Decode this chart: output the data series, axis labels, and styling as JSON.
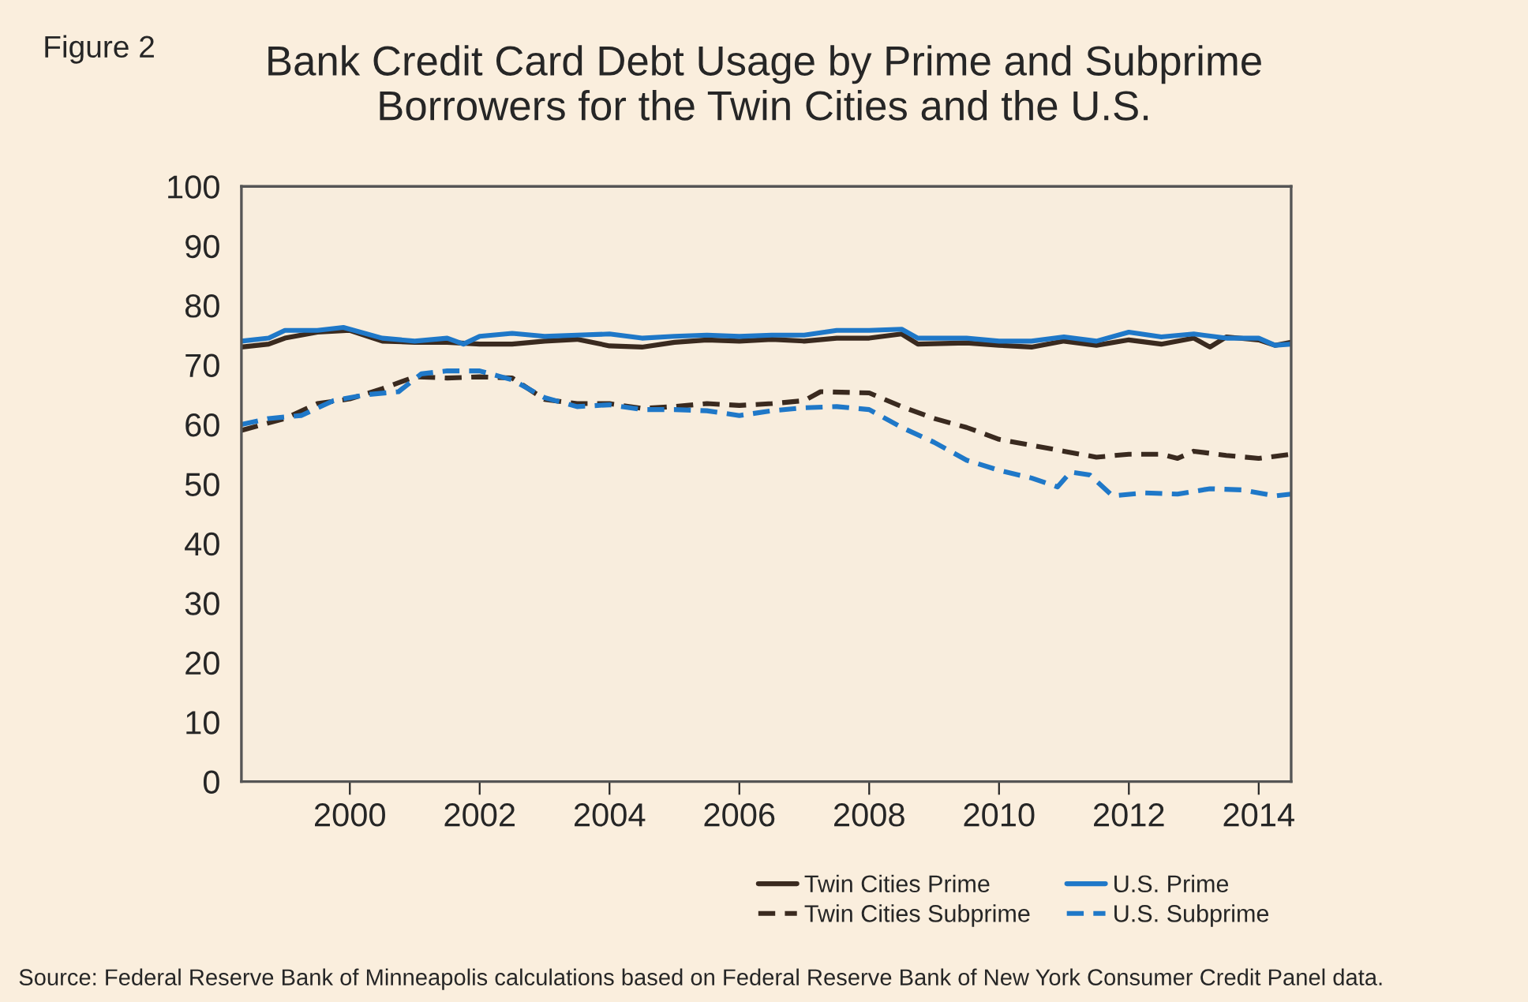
{
  "chart_data": {
    "type": "line",
    "title": "Bank Credit Card Debt Usage by Prime and Subprime\nBorrowers for the Twin Cities and the U.S.",
    "annotations": [
      "Figure 2",
      "Source: Federal Reserve Bank of Minneapolis calculations based on Federal Reserve Bank of New York Consumer Credit Panel data."
    ],
    "xlim": [
      1998.33,
      2014.5
    ],
    "ylim": [
      0,
      100
    ],
    "xticks": [
      2000,
      2002,
      2004,
      2006,
      2008,
      2010,
      2012,
      2014
    ],
    "yticks": [
      0,
      10,
      20,
      30,
      40,
      50,
      60,
      70,
      80,
      90,
      100
    ],
    "grid": false,
    "legend": "bottom right",
    "marker": "none",
    "series": [
      {
        "name": "Twin Cities Prime",
        "color": "#3a2a1f",
        "line_style": "solid",
        "x": [
          1998.33,
          1998.75,
          1999,
          1999.5,
          2000,
          2000.5,
          2001,
          2001.5,
          2002,
          2002.5,
          2003,
          2003.5,
          2004,
          2004.5,
          2005,
          2005.5,
          2006,
          2006.5,
          2007,
          2007.5,
          2008,
          2008.5,
          2008.75,
          2009.5,
          2010,
          2010.5,
          2011,
          2011.5,
          2012,
          2012.5,
          2013,
          2013.25,
          2013.5,
          2014,
          2014.25,
          2014.5
        ],
        "values": [
          73,
          73.5,
          74.5,
          75.5,
          75.8,
          74,
          73.8,
          73.8,
          73.5,
          73.5,
          74,
          74.3,
          73.2,
          73,
          73.8,
          74.2,
          74,
          74.3,
          74,
          74.5,
          74.5,
          75.2,
          73.5,
          73.7,
          73.3,
          73,
          74,
          73.3,
          74.2,
          73.5,
          74.5,
          73,
          74.7,
          74.2,
          73.3,
          73.8
        ]
      },
      {
        "name": "Twin Cities Subprime",
        "color": "#3a2a1f",
        "line_style": "dashed",
        "x": [
          1998.33,
          1999,
          1999.5,
          2000,
          2000.5,
          2001,
          2001.5,
          2002,
          2002.5,
          2003,
          2003.5,
          2004,
          2004.5,
          2005,
          2005.5,
          2006,
          2006.5,
          2007,
          2007.25,
          2008,
          2008.5,
          2009,
          2009.5,
          2010,
          2010.5,
          2011,
          2011.5,
          2012,
          2012.5,
          2012.75,
          2013,
          2013.5,
          2014,
          2014.5
        ],
        "values": [
          59,
          61,
          63.5,
          64.3,
          66,
          68,
          67.8,
          68,
          67.8,
          64.2,
          63.5,
          63.5,
          62.7,
          63,
          63.5,
          63.2,
          63.5,
          64,
          65.5,
          65.3,
          63,
          61,
          59.5,
          57.5,
          56.5,
          55.5,
          54.5,
          55,
          55,
          54.3,
          55.5,
          54.8,
          54.3,
          55
        ]
      },
      {
        "name": "U.S. Prime",
        "color": "#1f78c8",
        "line_style": "solid",
        "x": [
          1998.33,
          1998.75,
          1999,
          1999.5,
          1999.9,
          2000.5,
          2001,
          2001.5,
          2001.75,
          2002,
          2002.5,
          2003,
          2003.5,
          2004,
          2004.5,
          2005,
          2005.5,
          2006,
          2006.5,
          2007,
          2007.5,
          2008,
          2008.5,
          2008.75,
          2009.5,
          2010,
          2010.5,
          2011,
          2011.5,
          2012,
          2012.5,
          2013,
          2013.5,
          2014,
          2014.25,
          2014.5
        ],
        "values": [
          74,
          74.5,
          75.8,
          75.8,
          76.3,
          74.5,
          74,
          74.5,
          73.5,
          74.8,
          75.3,
          74.8,
          75,
          75.2,
          74.5,
          74.8,
          75,
          74.8,
          75,
          75,
          75.8,
          75.8,
          76,
          74.5,
          74.5,
          74,
          74,
          74.7,
          74,
          75.5,
          74.7,
          75.2,
          74.5,
          74.5,
          73.3,
          73.5
        ]
      },
      {
        "name": "U.S. Subprime",
        "color": "#1f78c8",
        "line_style": "dashed",
        "x": [
          1998.33,
          1998.75,
          1999.25,
          1999.75,
          2000.25,
          2000.75,
          2001.1,
          2001.5,
          2002,
          2002.5,
          2003,
          2003.5,
          2004,
          2004.5,
          2005,
          2005.5,
          2006,
          2006.5,
          2007,
          2007.5,
          2008,
          2008.5,
          2009,
          2009.5,
          2010,
          2010.5,
          2010.9,
          2011.1,
          2011.4,
          2011.75,
          2012.25,
          2012.75,
          2013.25,
          2013.75,
          2014.25,
          2014.5
        ],
        "values": [
          60,
          61,
          61.5,
          64,
          65,
          65.5,
          68.5,
          69,
          69,
          67.5,
          64.5,
          63,
          63.3,
          62.5,
          62.5,
          62.3,
          61.5,
          62.3,
          62.8,
          63,
          62.5,
          59.5,
          57,
          54,
          52.3,
          51,
          49.5,
          52,
          51.5,
          48,
          48.5,
          48.3,
          49.2,
          49,
          48,
          48.3
        ]
      }
    ]
  }
}
